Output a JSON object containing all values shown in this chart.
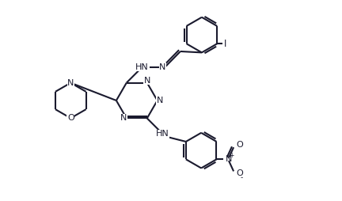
{
  "bg_color": "#ffffff",
  "line_color": "#1a1a2e",
  "line_width": 1.5,
  "font_size": 8.5,
  "figsize": [
    4.32,
    2.54
  ],
  "dpi": 100,
  "xlim": [
    0,
    12
  ],
  "ylim": [
    0,
    7
  ]
}
